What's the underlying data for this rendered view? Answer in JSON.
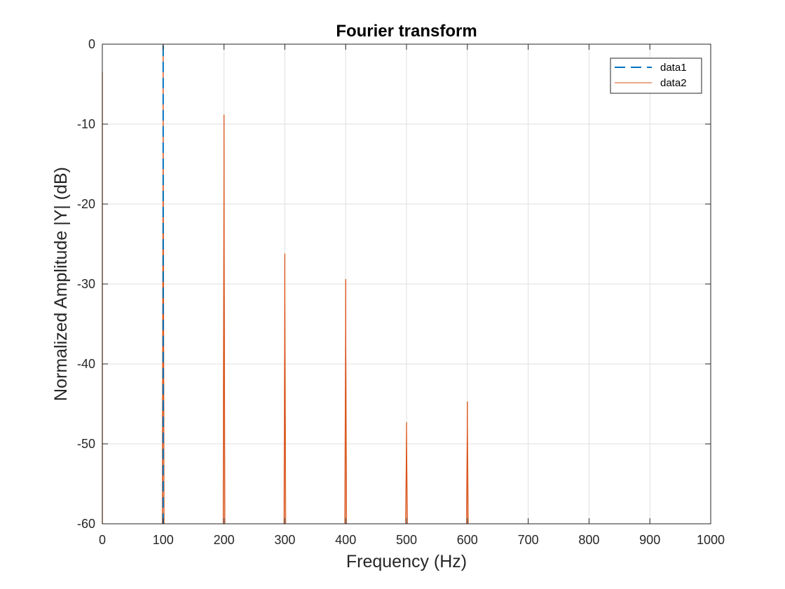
{
  "chart_data": {
    "type": "line",
    "title": "Fourier transform",
    "xlabel": "Frequency (Hz)",
    "ylabel": "Normalized Amplitude |Y| (dB)",
    "xlim": [
      0,
      1000
    ],
    "ylim": [
      -60,
      0
    ],
    "xticks": [
      0,
      100,
      200,
      300,
      400,
      500,
      600,
      700,
      800,
      900,
      1000
    ],
    "yticks": [
      0,
      -10,
      -20,
      -30,
      -40,
      -50,
      -60
    ],
    "grid": true,
    "legend_position": "top-right",
    "series": [
      {
        "name": "data1",
        "color": "#0072BD",
        "style": "dashed",
        "peaks": [
          {
            "x": 100,
            "y": 0
          }
        ]
      },
      {
        "name": "data2",
        "color": "#D95319",
        "style": "solid",
        "peaks": [
          {
            "x": 0,
            "y": -3.5
          },
          {
            "x": 100,
            "y": 0
          },
          {
            "x": 200,
            "y": -8.8
          },
          {
            "x": 300,
            "y": -26.2
          },
          {
            "x": 400,
            "y": -29.4
          },
          {
            "x": 500,
            "y": -47.3
          },
          {
            "x": 600,
            "y": -44.7
          }
        ]
      }
    ]
  }
}
